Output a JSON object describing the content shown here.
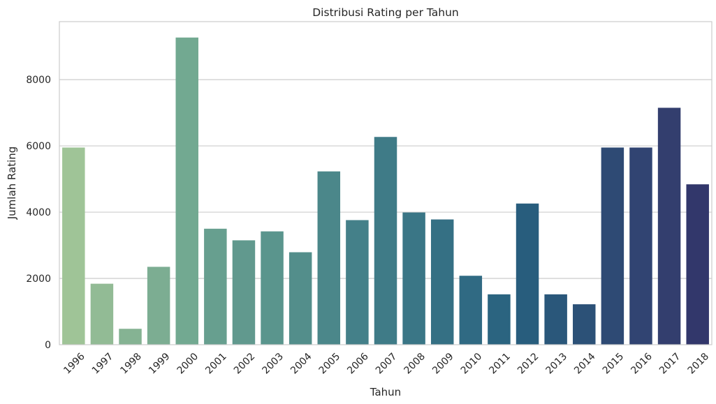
{
  "chart_data": {
    "type": "bar",
    "title": "Distribusi Rating per Tahun",
    "xlabel": "Tahun",
    "ylabel": "Jumlah Rating",
    "categories": [
      "1996",
      "1997",
      "1998",
      "1999",
      "2000",
      "2001",
      "2002",
      "2003",
      "2004",
      "2005",
      "2006",
      "2007",
      "2008",
      "2009",
      "2010",
      "2011",
      "2012",
      "2013",
      "2014",
      "2015",
      "2016",
      "2017",
      "2018"
    ],
    "values": [
      5950,
      1840,
      480,
      2350,
      9270,
      3500,
      3150,
      3420,
      2790,
      5230,
      3760,
      6270,
      3990,
      3780,
      2080,
      1520,
      4260,
      1520,
      1220,
      5950,
      5950,
      7150,
      4840
    ],
    "colors": [
      "#9fc497",
      "#92bb95",
      "#85b393",
      "#7cad92",
      "#72a991",
      "#679f8f",
      "#61998e",
      "#5a958d",
      "#538e8b",
      "#4b878a",
      "#448089",
      "#3f7b87",
      "#3a7686",
      "#357084",
      "#306a83",
      "#2b6480",
      "#285d7d",
      "#2a577a",
      "#2c5177",
      "#2e4a74",
      "#314472",
      "#333e6e",
      "#32376b"
    ],
    "yticks": [
      0,
      2000,
      4000,
      6000,
      8000
    ],
    "ylim": [
      0,
      9750
    ],
    "grid": true,
    "legend": "none"
  }
}
